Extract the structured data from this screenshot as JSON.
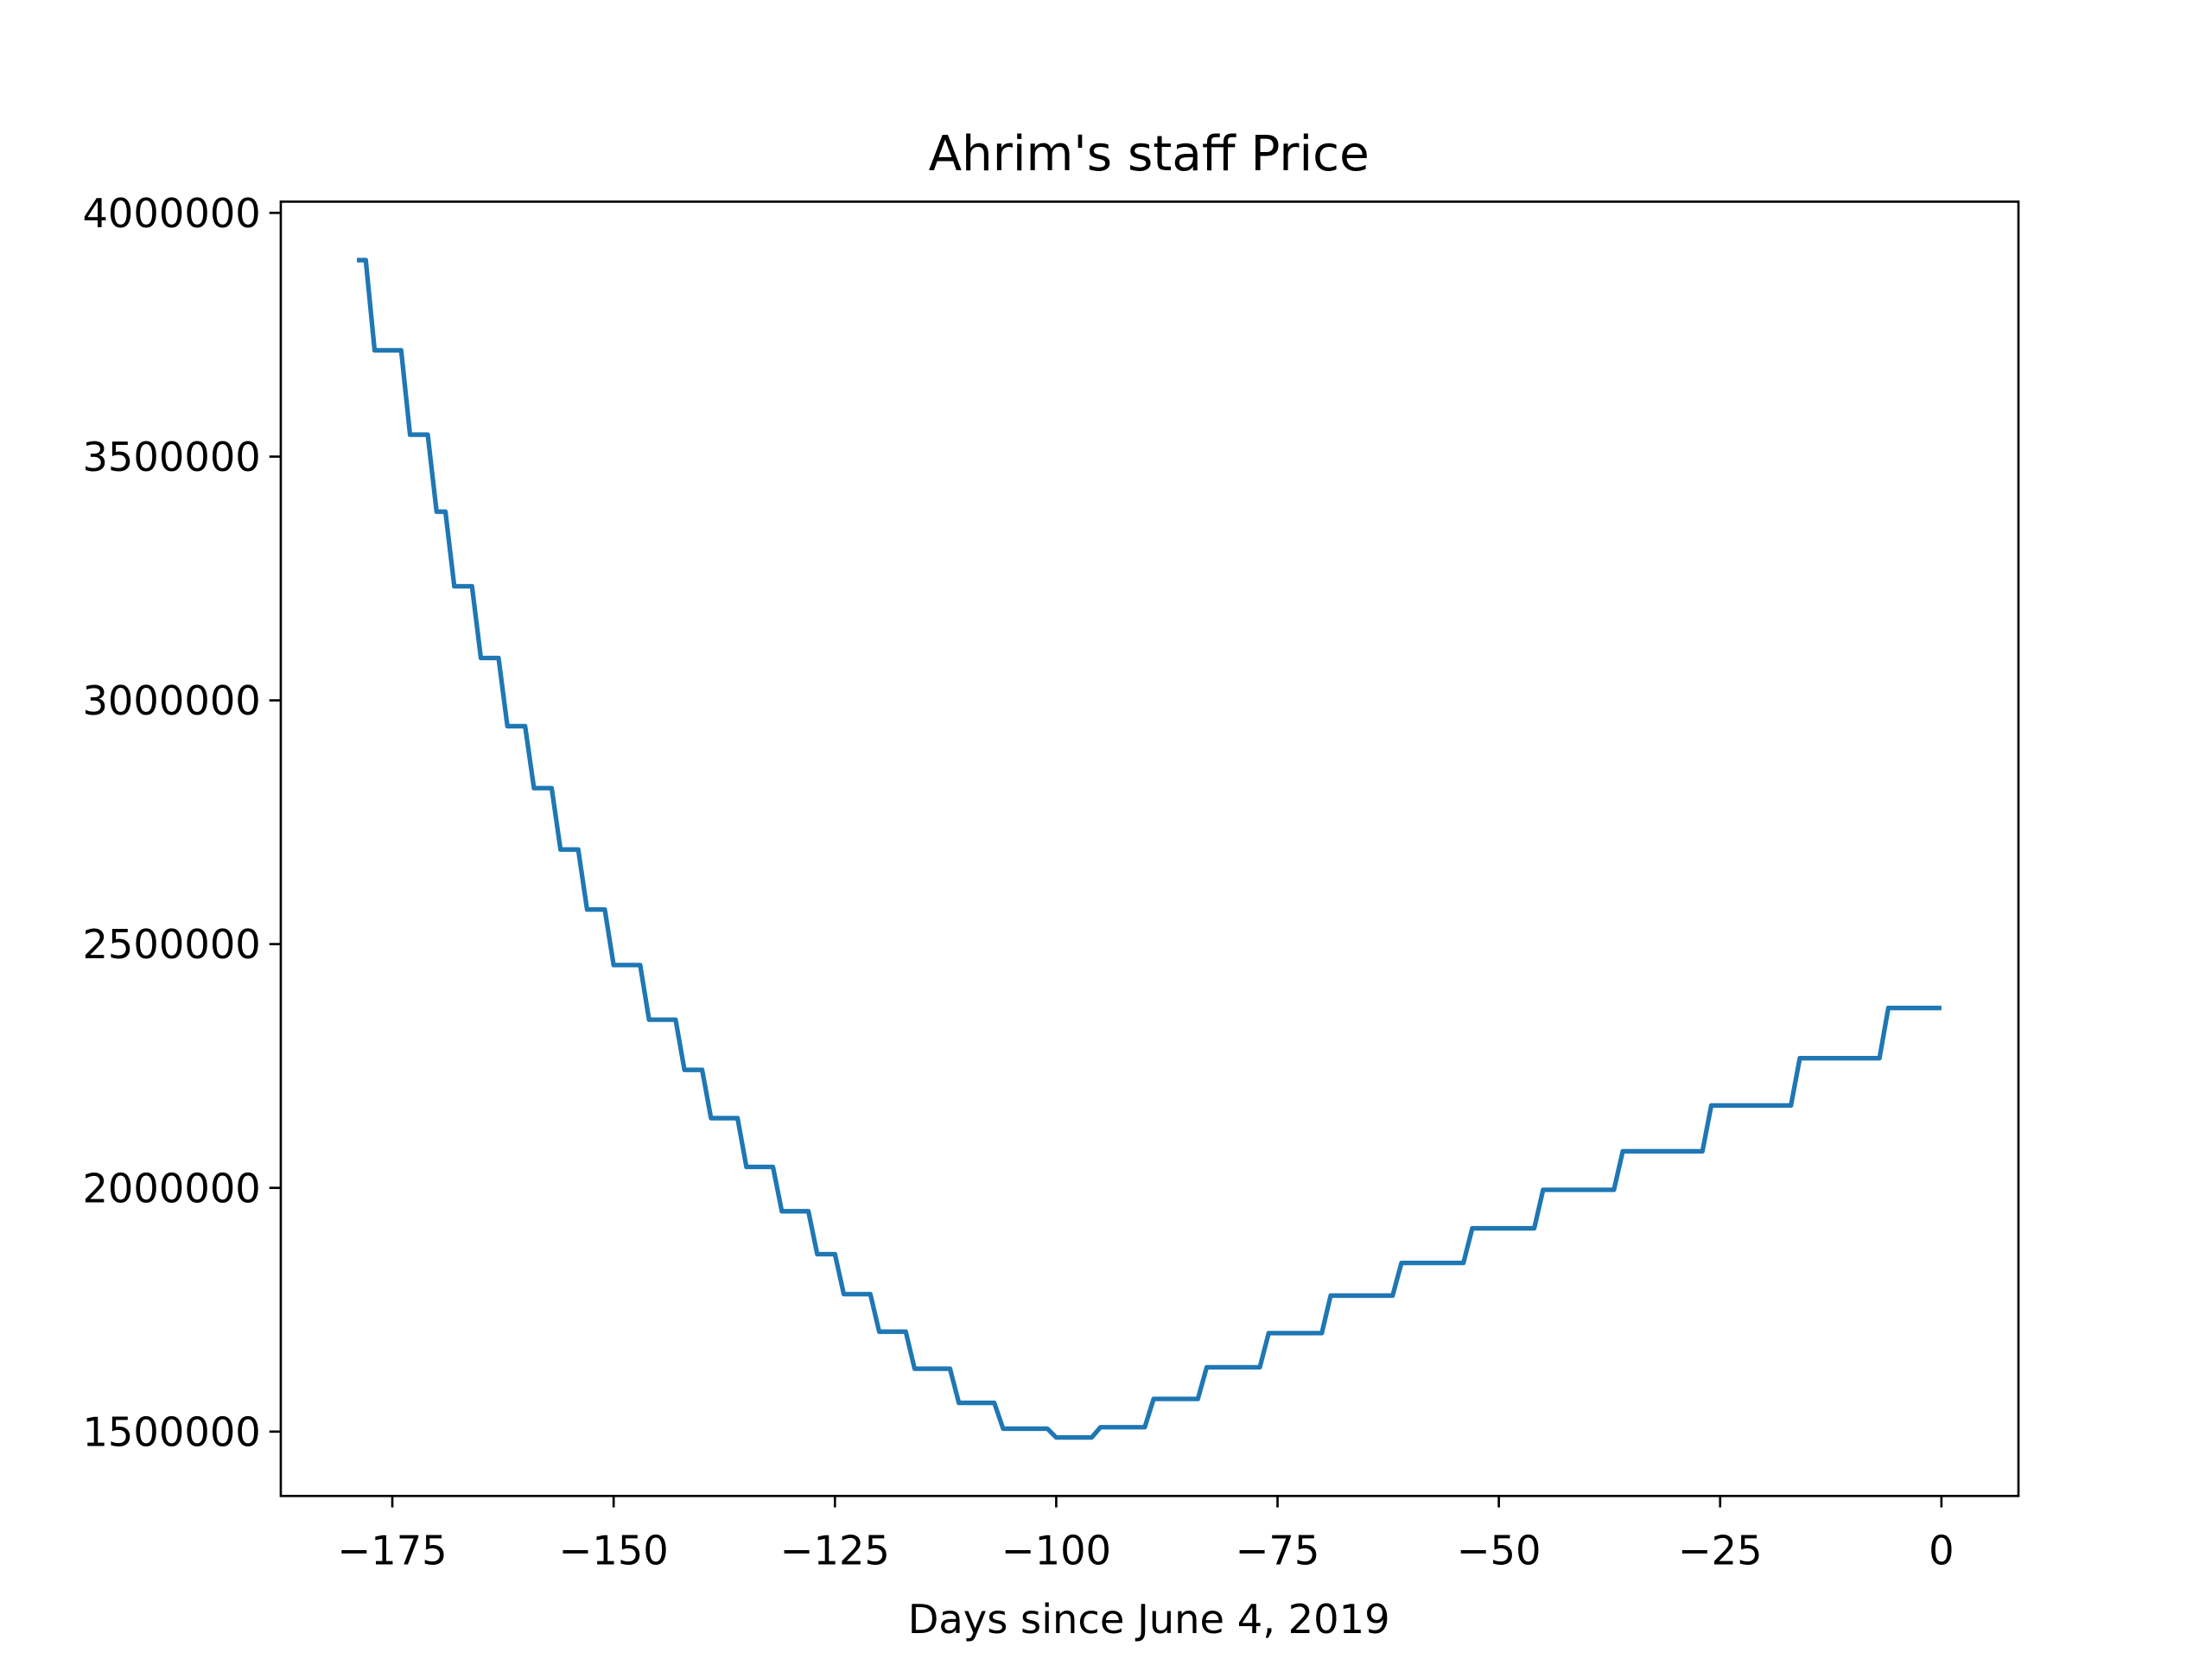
{
  "chart_data": {
    "type": "line",
    "title": "Ahrim's staff Price",
    "x_label": "Days since June 4, 2019",
    "x": [
      -179,
      -178,
      -177,
      -174,
      -173,
      -171,
      -170,
      -169,
      -168,
      -166,
      -165,
      -163,
      -162,
      -160,
      -159,
      -157,
      -156,
      -154,
      -153,
      -151,
      -150,
      -147,
      -146,
      -143,
      -142,
      -140,
      -139,
      -136,
      -135,
      -132,
      -131,
      -128,
      -127,
      -125,
      -124,
      -121,
      -120,
      -117,
      -116,
      -112,
      -111,
      -107,
      -106,
      -101,
      -100,
      -96,
      -95,
      -90,
      -89,
      -84,
      -83,
      -77,
      -76,
      -70,
      -69,
      -62,
      -61,
      -54,
      -53,
      -46,
      -45,
      -37,
      -36,
      -27,
      -26,
      -17,
      -16,
      -7,
      -6,
      0
    ],
    "series": [
      {
        "color": "#1f77b4",
        "values": [
          3903000,
          3903000,
          3718000,
          3718000,
          3545000,
          3545000,
          3387000,
          3387000,
          3234000,
          3234000,
          3087000,
          3087000,
          2947000,
          2947000,
          2820000,
          2820000,
          2694000,
          2694000,
          2571000,
          2571000,
          2457000,
          2457000,
          2345000,
          2345000,
          2242000,
          2242000,
          2143000,
          2143000,
          2043000,
          2043000,
          1952000,
          1952000,
          1864000,
          1864000,
          1782000,
          1782000,
          1705000,
          1705000,
          1629000,
          1629000,
          1559000,
          1559000,
          1506000,
          1506000,
          1488000,
          1488000,
          1509000,
          1509000,
          1567000,
          1567000,
          1632000,
          1632000,
          1702000,
          1702000,
          1779000,
          1779000,
          1846000,
          1846000,
          1917000,
          1917000,
          1996000,
          1996000,
          2075000,
          2075000,
          2169000,
          2169000,
          2266000,
          2266000,
          2369000,
          2369000
        ]
      }
    ],
    "xlim": [
      -187.6,
      8.7
    ],
    "ylim": [
      1368000,
      4023000
    ],
    "xticks": [
      {
        "value": -175,
        "label": "−175"
      },
      {
        "value": -150,
        "label": "−150"
      },
      {
        "value": -125,
        "label": "−125"
      },
      {
        "value": -100,
        "label": "−100"
      },
      {
        "value": -75,
        "label": "−75"
      },
      {
        "value": -50,
        "label": "−50"
      },
      {
        "value": -25,
        "label": "−25"
      },
      0
    ],
    "yticks": [
      1500000,
      2000000,
      2500000,
      3000000,
      3500000,
      4000000
    ]
  }
}
